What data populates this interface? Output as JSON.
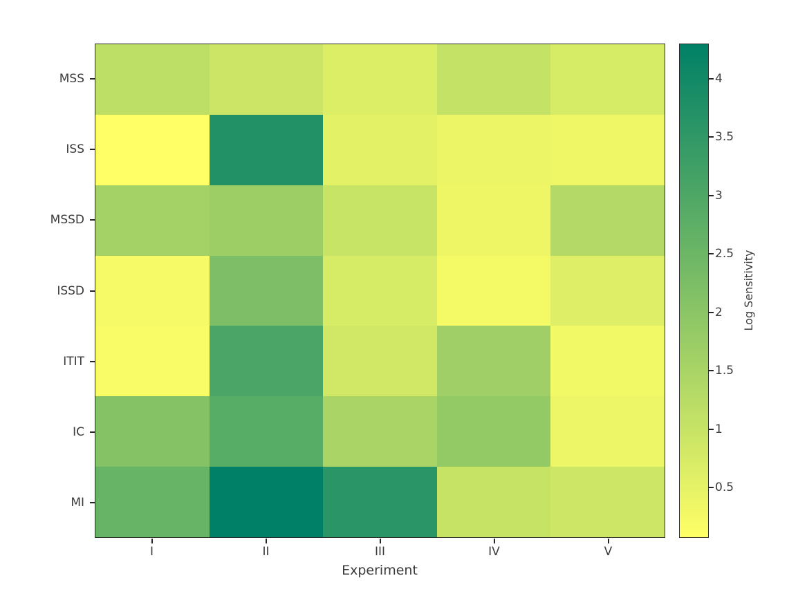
{
  "figure": {
    "background": "#ffffff",
    "axis_color": "#262626",
    "label_color": "#3b3b3b"
  },
  "chart_data": {
    "type": "heatmap",
    "title": "",
    "xlabel": "Experiment",
    "ylabel": "",
    "x_categories": [
      "I",
      "II",
      "III",
      "IV",
      "V"
    ],
    "y_categories": [
      "MSS",
      "ISS",
      "MSSD",
      "ISSD",
      "ITIT",
      "IC",
      "MI"
    ],
    "values": [
      [
        1.15,
        0.92,
        0.65,
        1.05,
        0.75
      ],
      [
        0.07,
        3.72,
        0.53,
        0.4,
        0.34
      ],
      [
        1.58,
        1.7,
        0.98,
        0.36,
        1.32
      ],
      [
        0.23,
        2.22,
        0.75,
        0.26,
        0.62
      ],
      [
        0.17,
        3.06,
        0.85,
        1.66,
        0.28
      ],
      [
        2.1,
        2.85,
        1.48,
        1.85,
        0.37
      ],
      [
        2.57,
        4.3,
        3.6,
        1.0,
        0.9
      ]
    ],
    "vmin": 0.07,
    "vmax": 4.3,
    "colormap": "summer_r",
    "colormap_low": "#ffff66",
    "colormap_high": "#008066",
    "grid": false,
    "colorbar": {
      "label": "Log Sensitivity",
      "ticks": [
        0.5,
        1,
        1.5,
        2,
        2.5,
        3,
        3.5,
        4
      ]
    }
  }
}
